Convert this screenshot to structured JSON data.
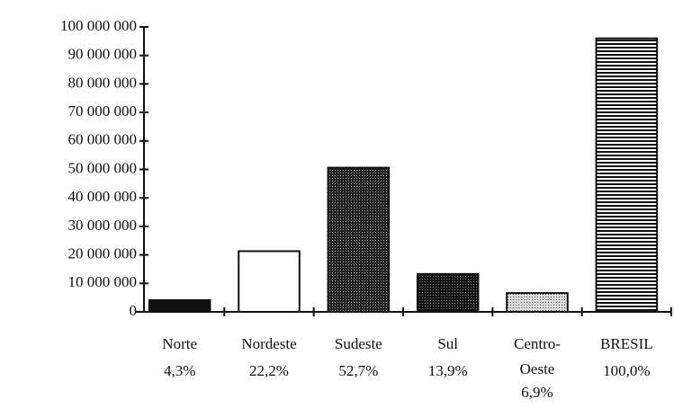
{
  "chart_data": {
    "type": "bar",
    "categories": [
      [
        "Norte"
      ],
      [
        "Nordeste"
      ],
      [
        "Sudeste"
      ],
      [
        "Sul"
      ],
      [
        "Centro-",
        "Oeste"
      ],
      [
        "BRESIL"
      ]
    ],
    "shares": [
      {
        "value": 4.3,
        "label": "4,3%"
      },
      {
        "value": 22.2,
        "label": "22,2%"
      },
      {
        "value": 52.7,
        "label": "52,7%"
      },
      {
        "value": 13.9,
        "label": "13,9%"
      },
      {
        "value": 6.9,
        "label": "6,9%"
      },
      {
        "value": 100.0,
        "label": "100,0%"
      }
    ],
    "values": [
      4100000,
      21300000,
      50600000,
      13300000,
      6600000,
      96000000
    ],
    "colors": [
      "#111111",
      "#ffffff",
      "url(#pat-dense)",
      "url(#pat-dark)",
      "url(#pat-light)",
      "url(#pat-stripes)"
    ],
    "ylim": [
      0,
      100000000
    ],
    "yticks": [
      0,
      {
        "value": 10000000,
        "label": "10 000 000"
      },
      {
        "value": 20000000,
        "label": "20 000 000"
      },
      {
        "value": 30000000,
        "label": "30 000 000"
      },
      {
        "value": 40000000,
        "label": "40 000 000"
      },
      {
        "value": 50000000,
        "label": "50 000 000"
      },
      {
        "value": 60000000,
        "label": "60 000 000"
      },
      {
        "value": 70000000,
        "label": "70 000 000"
      },
      {
        "value": 80000000,
        "label": "80 000 000"
      },
      {
        "value": 90000000,
        "label": "90 000 000"
      },
      {
        "value": 100000000,
        "label": "100 000 000"
      }
    ],
    "grid": false
  }
}
